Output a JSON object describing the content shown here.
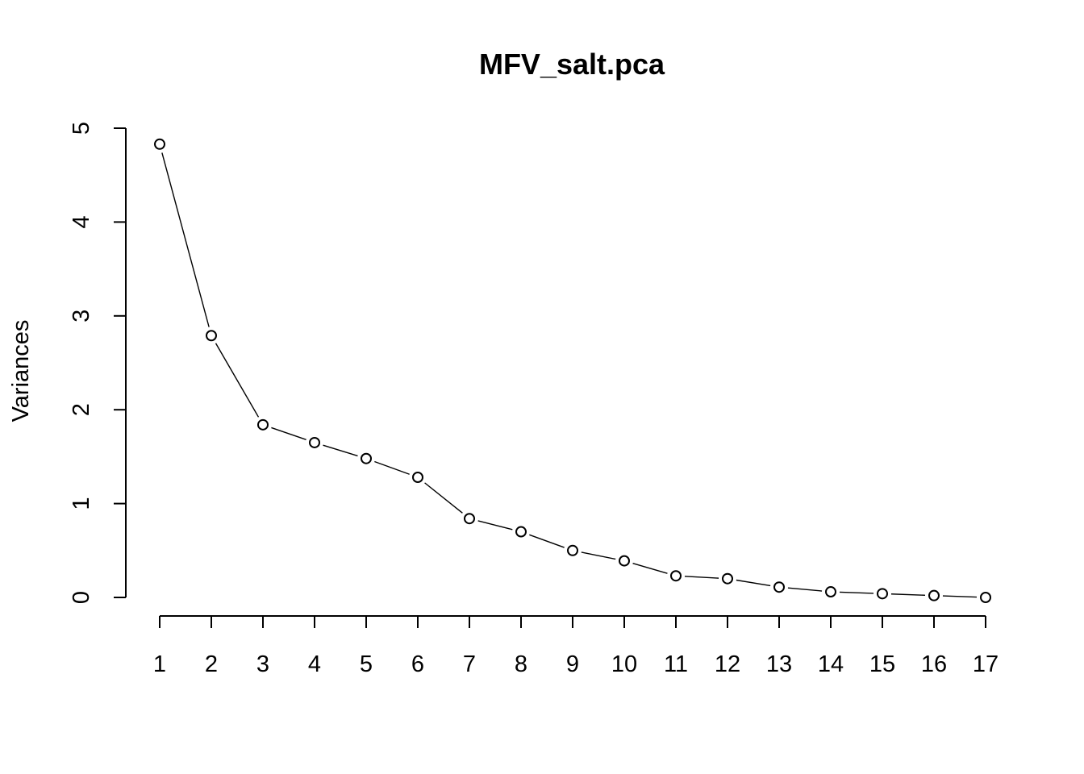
{
  "chart_data": {
    "type": "line",
    "title": "MFV_salt.pca",
    "xlabel": "",
    "ylabel": "Variances",
    "x": [
      1,
      2,
      3,
      4,
      5,
      6,
      7,
      8,
      9,
      10,
      11,
      12,
      13,
      14,
      15,
      16,
      17
    ],
    "x_tick_labels": [
      "1",
      "2",
      "3",
      "4",
      "5",
      "6",
      "7",
      "8",
      "9",
      "10",
      "11",
      "12",
      "13",
      "14",
      "15",
      "16",
      "17"
    ],
    "values": [
      4.83,
      2.79,
      1.84,
      1.65,
      1.48,
      1.28,
      0.84,
      0.7,
      0.5,
      0.39,
      0.23,
      0.2,
      0.11,
      0.06,
      0.04,
      0.02,
      0.0
    ],
    "y_ticks": [
      0,
      1,
      2,
      3,
      4,
      5
    ],
    "y_tick_labels": [
      "0",
      "1",
      "2",
      "3",
      "4",
      "5"
    ],
    "ylim": [
      0,
      5
    ],
    "xlim": [
      1,
      17
    ],
    "grid": false,
    "legend": "none",
    "colors": {
      "line": "#000000",
      "marker_fill": "#ffffff",
      "background": "#ffffff"
    }
  }
}
